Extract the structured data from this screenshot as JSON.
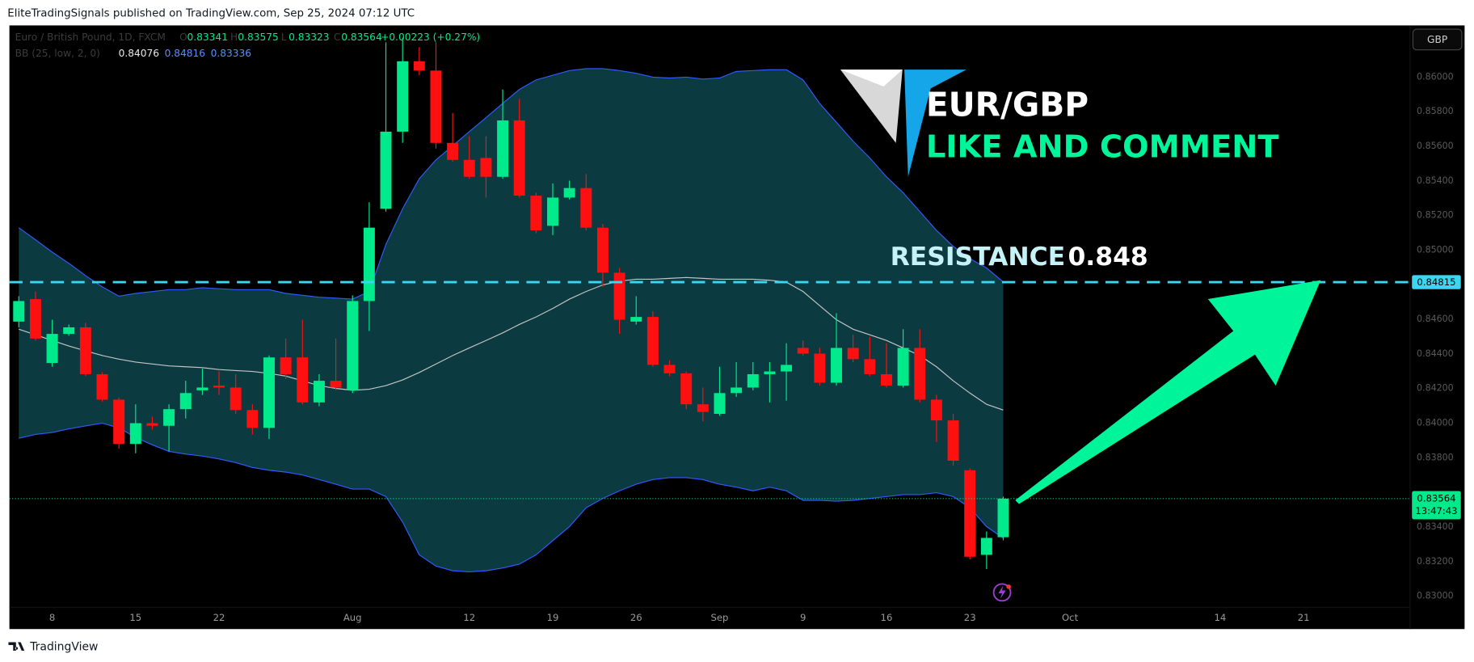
{
  "header": "EliteTradingSignals published on TradingView.com, Sep 25, 2024 07:12 UTC",
  "chart_data": {
    "type": "candlestick",
    "symbol": "Euro / British Pound, 1D, FXCM",
    "ohlc_labels": [
      "O",
      "H",
      "L",
      "C"
    ],
    "change": "+0.00223 (+0.27%)",
    "currency": "GBP",
    "categories": [
      null,
      null,
      "8",
      null,
      null,
      null,
      null,
      "15",
      null,
      null,
      null,
      null,
      "22",
      null,
      null,
      null,
      null,
      null,
      null,
      null,
      "Aug",
      null,
      null,
      null,
      null,
      null,
      null,
      "12",
      null,
      null,
      null,
      null,
      "19",
      null,
      null,
      null,
      null,
      "26",
      null,
      null,
      null,
      null,
      "Sep",
      null,
      null,
      null,
      null,
      "9",
      null,
      null,
      null,
      null,
      "16",
      null,
      null,
      null,
      null,
      "23",
      null,
      null,
      null,
      null,
      null,
      "Oct",
      null,
      null,
      null,
      null,
      null,
      null,
      null,
      null,
      "14",
      null,
      null,
      null,
      null,
      "21",
      null,
      null,
      null,
      null,
      null,
      null
    ],
    "open": [
      0.84587,
      0.84717,
      0.84348,
      0.84516,
      0.84554,
      0.84283,
      0.84136,
      0.8388,
      0.84,
      0.83985,
      0.84081,
      0.8419,
      0.84217,
      0.84206,
      0.84076,
      0.83973,
      0.8438,
      0.8438,
      0.8412,
      0.84245,
      0.8419,
      0.84706,
      0.85239,
      0.85685,
      0.86092,
      0.86038,
      0.8562,
      0.85522,
      0.85533,
      0.85424,
      0.8575,
      0.85315,
      0.85141,
      0.85304,
      0.85359,
      0.8513,
      0.8487,
      0.84587,
      0.84614,
      0.84337,
      0.84288,
      0.84109,
      0.84054,
      0.84174,
      0.84206,
      0.84283,
      0.84299,
      0.84435,
      0.84402,
      0.84234,
      0.84435,
      0.8437,
      0.84283,
      0.84217,
      0.84435,
      0.84136,
      0.84016,
      0.83728,
      0.83239,
      0.83341,
      null,
      null,
      null,
      null,
      null,
      null,
      null,
      null,
      null,
      null,
      null,
      null,
      null,
      null,
      null,
      null,
      null,
      null,
      null,
      null,
      null,
      null,
      null,
      null
    ],
    "high": [
      0.84734,
      0.84761,
      0.84598,
      0.8457,
      0.84581,
      0.84295,
      0.84148,
      0.84109,
      0.84038,
      0.84109,
      0.84245,
      0.84315,
      0.84299,
      0.84283,
      0.84109,
      0.84391,
      0.84489,
      0.84598,
      0.84283,
      0.84489,
      0.84739,
      0.85277,
      0.86201,
      0.86228,
      0.86174,
      0.86201,
      0.85793,
      0.85658,
      0.85658,
      0.85929,
      0.85875,
      0.85332,
      0.85386,
      0.85402,
      0.8544,
      0.85152,
      0.84897,
      0.84734,
      0.84647,
      0.84364,
      0.84299,
      0.84206,
      0.84326,
      0.84353,
      0.84353,
      0.84353,
      0.84462,
      0.84478,
      0.84435,
      0.84636,
      0.84511,
      0.845,
      0.84462,
      0.84543,
      0.84543,
      0.84163,
      0.84054,
      0.83739,
      0.83375,
      0.83575,
      null,
      null,
      null,
      null,
      null,
      null,
      null,
      null,
      null,
      null,
      null,
      null,
      null,
      null,
      null,
      null,
      null,
      null,
      null,
      null,
      null,
      null,
      null,
      null
    ],
    "low": [
      0.84554,
      0.84478,
      0.84326,
      0.84505,
      0.84272,
      0.84125,
      0.83853,
      0.83826,
      0.83962,
      0.83837,
      0.84027,
      0.84163,
      0.84163,
      0.84054,
      0.83935,
      0.83908,
      0.84255,
      0.84109,
      0.84098,
      0.8419,
      0.84174,
      0.84533,
      0.85223,
      0.8562,
      0.86011,
      0.85587,
      0.85511,
      0.85413,
      0.85304,
      0.85413,
      0.85304,
      0.85098,
      0.85087,
      0.85293,
      0.85114,
      0.84788,
      0.84516,
      0.8457,
      0.84326,
      0.84272,
      0.84081,
      0.84011,
      0.84043,
      0.84152,
      0.8419,
      0.8412,
      0.8413,
      0.84391,
      0.84217,
      0.84217,
      0.84353,
      0.84272,
      0.84206,
      0.84206,
      0.8412,
      0.83891,
      0.83755,
      0.83212,
      0.83157,
      0.83323,
      null,
      null,
      null,
      null,
      null,
      null,
      null,
      null,
      null,
      null,
      null,
      null,
      null,
      null,
      null,
      null,
      null,
      null,
      null,
      null,
      null,
      null,
      null,
      null
    ],
    "close": [
      0.84706,
      0.84489,
      0.84516,
      0.84554,
      0.84283,
      0.84136,
      0.8388,
      0.84,
      0.83985,
      0.84081,
      0.84174,
      0.84206,
      0.84206,
      0.84076,
      0.83973,
      0.8438,
      0.84283,
      0.8412,
      0.84245,
      0.84206,
      0.84706,
      0.8513,
      0.85685,
      0.86092,
      0.86038,
      0.8562,
      0.85522,
      0.85424,
      0.85424,
      0.8575,
      0.85315,
      0.85114,
      0.85304,
      0.85359,
      0.8513,
      0.8487,
      0.84598,
      0.84614,
      0.84337,
      0.84288,
      0.84109,
      0.84065,
      0.84174,
      0.84206,
      0.84283,
      0.84299,
      0.84337,
      0.84402,
      0.84234,
      0.84435,
      0.8437,
      0.84283,
      0.84217,
      0.84435,
      0.84136,
      0.84016,
      0.83783,
      0.83228,
      0.83337,
      0.83564,
      null,
      null,
      null,
      null,
      null,
      null,
      null,
      null,
      null,
      null,
      null,
      null,
      null,
      null,
      null,
      null,
      null,
      null,
      null,
      null,
      null,
      null,
      null,
      null
    ],
    "up_color": "#00ea8c",
    "down_color": "#ff1010",
    "indicator": {
      "name": "BB (25, low, 2, 0)",
      "basis_color": "#c4c4c4",
      "band_color": "#2f5bff",
      "fill_color": "#0b3a40",
      "basis": [
        0.84543,
        0.84511,
        0.84478,
        0.84446,
        0.84418,
        0.84391,
        0.8437,
        0.84353,
        0.84342,
        0.84331,
        0.84326,
        0.84321,
        0.8431,
        0.84304,
        0.84299,
        0.84288,
        0.84272,
        0.84245,
        0.84217,
        0.84201,
        0.8419,
        0.84196,
        0.84217,
        0.8425,
        0.84293,
        0.84342,
        0.84391,
        0.84435,
        0.84478,
        0.84522,
        0.84571,
        0.84614,
        0.84663,
        0.84717,
        0.84761,
        0.84799,
        0.84821,
        0.84832,
        0.84832,
        0.84837,
        0.84842,
        0.84837,
        0.84832,
        0.84832,
        0.84832,
        0.84826,
        0.84815,
        0.84761,
        0.84679,
        0.84598,
        0.84543,
        0.84511,
        0.84478,
        0.84435,
        0.84391,
        0.84326,
        0.84245,
        0.84174,
        0.84109,
        0.84076,
        null,
        null,
        null,
        null,
        null,
        null,
        null,
        null,
        null,
        null,
        null,
        null,
        null,
        null,
        null,
        null,
        null,
        null,
        null,
        null,
        null,
        null,
        null,
        null
      ],
      "upper": [
        0.8513,
        0.8506,
        0.84989,
        0.84924,
        0.84853,
        0.84788,
        0.84734,
        0.8475,
        0.84761,
        0.84772,
        0.84772,
        0.84783,
        0.84777,
        0.84772,
        0.84772,
        0.84772,
        0.8475,
        0.84739,
        0.84728,
        0.84723,
        0.84717,
        0.84761,
        0.85033,
        0.85239,
        0.85413,
        0.85522,
        0.85603,
        0.85685,
        0.85766,
        0.85848,
        0.85929,
        0.85984,
        0.86011,
        0.86038,
        0.86049,
        0.86049,
        0.86038,
        0.86022,
        0.86,
        0.85995,
        0.86,
        0.85989,
        0.85995,
        0.86033,
        0.86038,
        0.86043,
        0.86043,
        0.85984,
        0.85848,
        0.85739,
        0.8563,
        0.85533,
        0.85424,
        0.85332,
        0.85223,
        0.85114,
        0.85022,
        0.84951,
        0.84897,
        0.84816,
        null,
        null,
        null,
        null,
        null,
        null,
        null,
        null,
        null,
        null,
        null,
        null,
        null,
        null,
        null,
        null,
        null,
        null,
        null,
        null,
        null,
        null,
        null,
        null
      ],
      "lower": [
        0.83913,
        0.83935,
        0.83946,
        0.83967,
        0.83984,
        0.84,
        0.83973,
        0.83918,
        0.83875,
        0.83837,
        0.83821,
        0.8381,
        0.83793,
        0.83772,
        0.83744,
        0.83728,
        0.83717,
        0.83701,
        0.83674,
        0.83647,
        0.83619,
        0.83619,
        0.83576,
        0.83429,
        0.83239,
        0.83174,
        0.83147,
        0.83141,
        0.83147,
        0.83163,
        0.83185,
        0.83239,
        0.83321,
        0.83402,
        0.83511,
        0.83565,
        0.83609,
        0.83647,
        0.83674,
        0.83685,
        0.83685,
        0.83674,
        0.83647,
        0.8363,
        0.83609,
        0.8363,
        0.83609,
        0.83554,
        0.83554,
        0.83549,
        0.83554,
        0.83565,
        0.83576,
        0.83587,
        0.83587,
        0.83598,
        0.83576,
        0.83511,
        0.83402,
        0.83336,
        null,
        null,
        null,
        null,
        null,
        null,
        null,
        null,
        null,
        null,
        null,
        null,
        null,
        null,
        null,
        null,
        null,
        null,
        null,
        null,
        null,
        null,
        null,
        null
      ]
    },
    "ylim": [
      0.82935,
      0.86299
    ],
    "yticks": [
      {
        "value": 0.83,
        "label": "0.83000"
      },
      {
        "value": 0.832,
        "label": "0.83200"
      },
      {
        "value": 0.834,
        "label": "0.83400"
      },
      {
        "value": 0.838,
        "label": "0.83800"
      },
      {
        "value": 0.84,
        "label": "0.84000"
      },
      {
        "value": 0.842,
        "label": "0.84200"
      },
      {
        "value": 0.844,
        "label": "0.84400"
      },
      {
        "value": 0.846,
        "label": "0.84600"
      },
      {
        "value": 0.85,
        "label": "0.85000"
      },
      {
        "value": 0.852,
        "label": "0.85200"
      },
      {
        "value": 0.854,
        "label": "0.85400"
      },
      {
        "value": 0.856,
        "label": "0.85600"
      },
      {
        "value": 0.858,
        "label": "0.85800"
      },
      {
        "value": 0.86,
        "label": "0.86000"
      }
    ],
    "resistance_line": 0.84815,
    "resistance_color": "#3ad6f2",
    "countdown": "13:47:43",
    "annotations": {
      "title": "EUR/GBP",
      "subtitle": "LIKE AND COMMENT",
      "label": "RESISTANCE",
      "value": 0.848
    }
  },
  "footer": "TradingView"
}
